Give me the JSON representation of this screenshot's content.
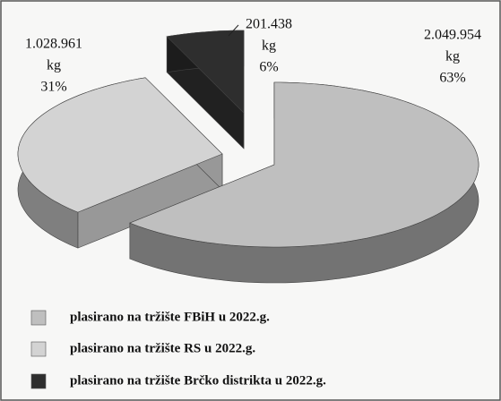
{
  "chart_data": {
    "type": "pie3d",
    "categories": [
      "plasirano na tržište FBiH u 2022.g.",
      "plasirano na tržište RS u 2022.g.",
      "plasirano na tržište Brčko distrikta u 2022.g."
    ],
    "values": [
      2049954,
      1028961,
      201438
    ],
    "value_labels": [
      "2.049.954",
      "1.028.961",
      "201.438"
    ],
    "unit": "kg",
    "percentages": [
      63,
      31,
      6
    ],
    "percent_labels": [
      "63%",
      "31%",
      "6%"
    ],
    "colors": [
      "#bfbfbf",
      "#d3d3d3",
      "#2e2e2e"
    ],
    "legend": "bottom-left"
  }
}
